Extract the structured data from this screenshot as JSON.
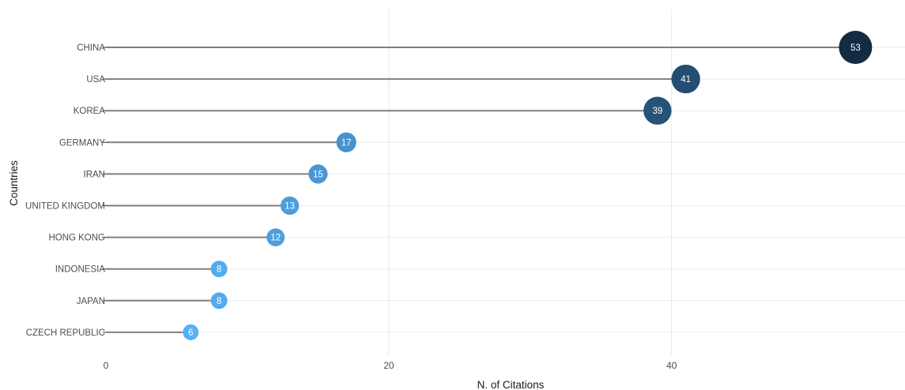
{
  "chart_data": {
    "type": "scatter",
    "subtype": "lollipop",
    "xlabel": "N. of Citations",
    "ylabel": "Countries",
    "xlim": [
      0,
      56.5
    ],
    "xticks": [
      0,
      20,
      40
    ],
    "grid": true,
    "legend": "none",
    "categories": [
      "CHINA",
      "USA",
      "KOREA",
      "GERMANY",
      "IRAN",
      "UNITED KINGDOM",
      "HONG KONG",
      "INDONESIA",
      "JAPAN",
      "CZECH REPUBLIC"
    ],
    "values": [
      53,
      41,
      39,
      17,
      15,
      13,
      12,
      8,
      8,
      6
    ],
    "value_labels": [
      "53",
      "41",
      "39",
      "17",
      "15",
      "13",
      "12",
      "8",
      "8",
      "6"
    ],
    "colors": {
      "stem": "#7f7f7f",
      "grid": "#ebebeb",
      "low": "#56b1f7",
      "high": "#132b43"
    }
  }
}
